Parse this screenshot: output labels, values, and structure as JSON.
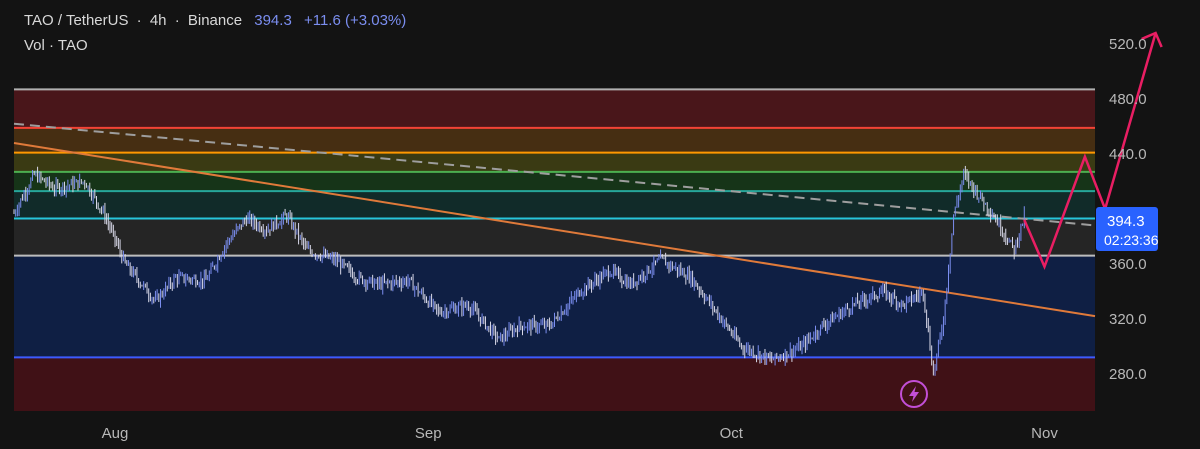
{
  "header": {
    "symbol": "TAO / TetherUS",
    "sep1": "·",
    "interval": "4h",
    "sep2": "·",
    "exchange": "Binance",
    "last_price": "394.3",
    "change": "+11.6 (+3.03%)",
    "volume_label": "Vol · TAO"
  },
  "price_tag": {
    "price": "394.3",
    "countdown": "02:23:36"
  },
  "colors": {
    "background": "#131313",
    "up": "#7b8ef0",
    "price_tag": "#2962ff",
    "forecast": "#e91e63",
    "trendline": "#e07a3a",
    "dashed_trend": "#9e9e9e"
  },
  "icons": {
    "bolt": "lightning-icon"
  },
  "chart_data": {
    "type": "candlestick",
    "x_type": "date",
    "x_ticks": [
      {
        "date": "2024-08-01",
        "label": "Aug"
      },
      {
        "date": "2024-09-01",
        "label": "Sep"
      },
      {
        "date": "2024-10-01",
        "label": "Oct"
      },
      {
        "date": "2024-11-01",
        "label": "Nov"
      }
    ],
    "x_range": [
      "2024-07-22",
      "2024-11-06"
    ],
    "y_ticks": [
      280,
      320,
      360,
      400,
      440,
      480,
      520
    ],
    "y_tick_labels": [
      "280.0",
      "320.0",
      "360.0",
      "",
      "440.0",
      "480.0",
      "520.0"
    ],
    "y_range": [
      253,
      552
    ],
    "grid": false,
    "price_path": [
      [
        "2024-07-22",
        397
      ],
      [
        "2024-07-24",
        425
      ],
      [
        "2024-07-26",
        415
      ],
      [
        "2024-07-29",
        420
      ],
      [
        "2024-07-31",
        395
      ],
      [
        "2024-08-02",
        360
      ],
      [
        "2024-08-05",
        333
      ],
      [
        "2024-08-07",
        350
      ],
      [
        "2024-08-10",
        348
      ],
      [
        "2024-08-12",
        375
      ],
      [
        "2024-08-14",
        393
      ],
      [
        "2024-08-16",
        385
      ],
      [
        "2024-08-18",
        395
      ],
      [
        "2024-08-20",
        370
      ],
      [
        "2024-08-23",
        362
      ],
      [
        "2024-08-25",
        350
      ],
      [
        "2024-08-27",
        345
      ],
      [
        "2024-08-30",
        348
      ],
      [
        "2024-09-02",
        325
      ],
      [
        "2024-09-05",
        330
      ],
      [
        "2024-09-08",
        305
      ],
      [
        "2024-09-10",
        315
      ],
      [
        "2024-09-13",
        315
      ],
      [
        "2024-09-16",
        340
      ],
      [
        "2024-09-19",
        355
      ],
      [
        "2024-09-21",
        345
      ],
      [
        "2024-09-24",
        363
      ],
      [
        "2024-09-27",
        350
      ],
      [
        "2024-09-30",
        320
      ],
      [
        "2024-10-02",
        300
      ],
      [
        "2024-10-05",
        290
      ],
      [
        "2024-10-08",
        300
      ],
      [
        "2024-10-10",
        315
      ],
      [
        "2024-10-13",
        330
      ],
      [
        "2024-10-16",
        340
      ],
      [
        "2024-10-18",
        330
      ],
      [
        "2024-10-20",
        340
      ],
      [
        "2024-10-21",
        280
      ],
      [
        "2024-10-22",
        320
      ],
      [
        "2024-10-23",
        395
      ],
      [
        "2024-10-24",
        425
      ],
      [
        "2024-10-26",
        405
      ],
      [
        "2024-10-27",
        395
      ],
      [
        "2024-10-29",
        370
      ],
      [
        "2024-10-30",
        395
      ]
    ],
    "horizontal_levels": [
      {
        "value": 487,
        "color": "#b0b0b0"
      },
      {
        "value": 459,
        "color": "#f44336"
      },
      {
        "value": 441,
        "color": "#ff9800"
      },
      {
        "value": 427,
        "color": "#4caf50"
      },
      {
        "value": 413,
        "color": "#26a69a"
      },
      {
        "value": 393,
        "color": "#26c6da"
      },
      {
        "value": 366,
        "color": "#bdbdbd"
      },
      {
        "value": 292,
        "color": "#3d5afe"
      }
    ],
    "zones": [
      {
        "from": 459,
        "to": 487,
        "color": "#8c1b24",
        "opacity": 0.45
      },
      {
        "from": 441,
        "to": 459,
        "color": "#7a4a12",
        "opacity": 0.5
      },
      {
        "from": 427,
        "to": 441,
        "color": "#6b6b14",
        "opacity": 0.45
      },
      {
        "from": 413,
        "to": 427,
        "color": "#1b5e20",
        "opacity": 0.45
      },
      {
        "from": 393,
        "to": 413,
        "color": "#0f4a45",
        "opacity": 0.45
      },
      {
        "from": 366,
        "to": 393,
        "color": "#2a2a2a",
        "opacity": 0.8
      },
      {
        "from": 292,
        "to": 366,
        "color": "#0d2a6e",
        "opacity": 0.55
      },
      {
        "from": 253,
        "to": 292,
        "color": "#6e1019",
        "opacity": 0.5
      }
    ],
    "trendlines": [
      {
        "from": [
          "2024-07-22",
          448
        ],
        "to": [
          "2024-11-06",
          322
        ],
        "color": "#e07a3a",
        "dashed": false
      },
      {
        "from": [
          "2024-07-22",
          462
        ],
        "to": [
          "2024-11-06",
          388
        ],
        "color": "#9e9e9e",
        "dashed": true
      }
    ],
    "forecast_path": [
      [
        "2024-10-30",
        392
      ],
      [
        "2024-11-01",
        358
      ],
      [
        "2024-11-05",
        438
      ],
      [
        "2024-11-07",
        400
      ],
      [
        "2024-11-12",
        528
      ]
    ]
  }
}
